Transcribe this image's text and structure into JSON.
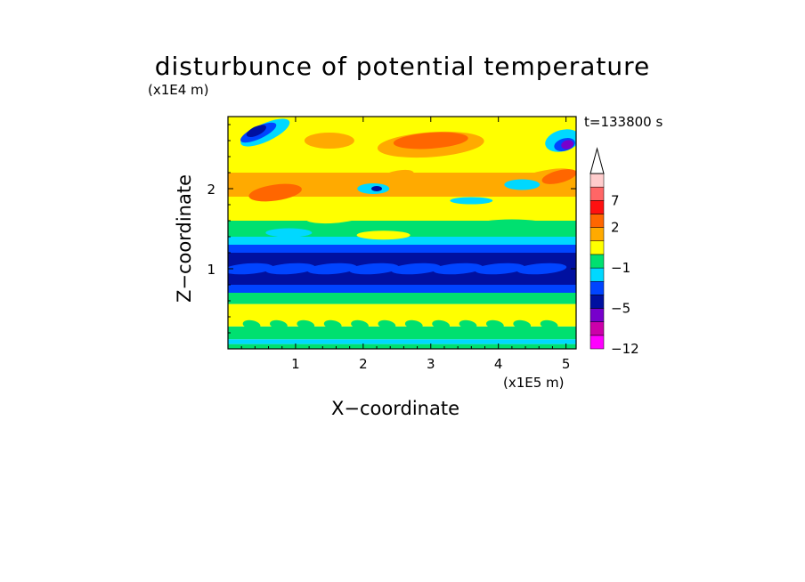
{
  "chart_data": {
    "type": "heatmap",
    "title": "disturbunce of potential temperature",
    "time_label": "t=133800 s",
    "xlabel": "X−coordinate",
    "ylabel": "Z−coordinate",
    "x_unit": "(x1E5 m)",
    "z_unit": "(x1E4 m)",
    "xlim": [
      0,
      5.15
    ],
    "zlim": [
      0,
      2.9
    ],
    "x_ticks": [
      1,
      2,
      3,
      4,
      5
    ],
    "z_ticks": [
      1,
      2
    ],
    "colorbar": {
      "tick_labels": [
        "7",
        "2",
        "−1",
        "−5",
        "−12"
      ],
      "colors": [
        "#ff00ff",
        "#cc00aa",
        "#7700cc",
        "#0010a0",
        "#0044ff",
        "#00d8ff",
        "#00e070",
        "#ffff00",
        "#ffaa00",
        "#ff6600",
        "#ff1010",
        "#ff6666",
        "#ffcccc"
      ],
      "extend": "max"
    },
    "bands": [
      {
        "z": [
          0.0,
          0.06
        ],
        "value": 0
      },
      {
        "z": [
          0.06,
          0.12
        ],
        "value": -1
      },
      {
        "z": [
          0.12,
          0.28
        ],
        "value": 0
      },
      {
        "z": [
          0.28,
          0.56
        ],
        "value": 1
      },
      {
        "z": [
          0.56,
          0.7
        ],
        "value": 0
      },
      {
        "z": [
          0.7,
          0.8
        ],
        "value": -2
      },
      {
        "z": [
          0.8,
          1.2
        ],
        "value": -4
      },
      {
        "z": [
          1.2,
          1.3
        ],
        "value": -2
      },
      {
        "z": [
          1.3,
          1.4
        ],
        "value": -1
      },
      {
        "z": [
          1.4,
          1.6
        ],
        "value": 0
      },
      {
        "z": [
          1.6,
          1.9
        ],
        "value": 1
      },
      {
        "z": [
          1.9,
          2.2
        ],
        "value": 2
      },
      {
        "z": [
          2.2,
          2.9
        ],
        "value": 1
      }
    ]
  }
}
